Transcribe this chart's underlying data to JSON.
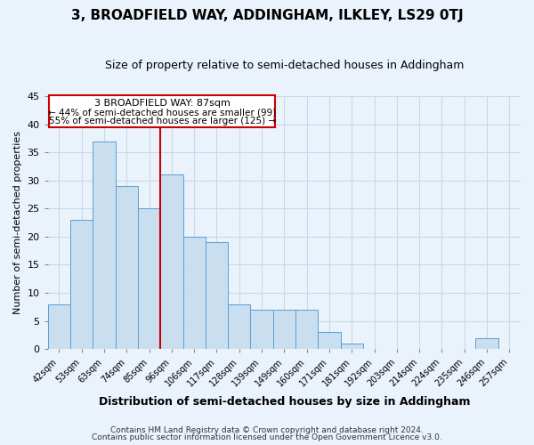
{
  "title": "3, BROADFIELD WAY, ADDINGHAM, ILKLEY, LS29 0TJ",
  "subtitle": "Size of property relative to semi-detached houses in Addingham",
  "xlabel": "Distribution of semi-detached houses by size in Addingham",
  "ylabel": "Number of semi-detached properties",
  "bin_labels": [
    "42sqm",
    "53sqm",
    "63sqm",
    "74sqm",
    "85sqm",
    "96sqm",
    "106sqm",
    "117sqm",
    "128sqm",
    "139sqm",
    "149sqm",
    "160sqm",
    "171sqm",
    "181sqm",
    "192sqm",
    "203sqm",
    "214sqm",
    "224sqm",
    "235sqm",
    "246sqm",
    "257sqm"
  ],
  "bar_values": [
    8,
    23,
    37,
    29,
    25,
    31,
    20,
    19,
    8,
    7,
    7,
    7,
    3,
    1,
    0,
    0,
    0,
    0,
    0,
    2,
    0
  ],
  "bar_color": "#c9dff0",
  "bar_edgecolor": "#5a9fd4",
  "property_label": "3 BROADFIELD WAY: 87sqm",
  "pct_smaller": 44,
  "pct_larger": 55,
  "n_smaller": 99,
  "n_larger": 125,
  "vline_x_index": 4.5,
  "ylim": [
    0,
    45
  ],
  "yticks": [
    0,
    5,
    10,
    15,
    20,
    25,
    30,
    35,
    40,
    45
  ],
  "annotation_box_facecolor": "#ffffff",
  "annotation_box_edgecolor": "#cc0000",
  "vline_color": "#cc0000",
  "grid_color": "#c8d8e8",
  "background_color": "#eaf3fb",
  "footer_line1": "Contains HM Land Registry data © Crown copyright and database right 2024.",
  "footer_line2": "Contains public sector information licensed under the Open Government Licence v3.0."
}
